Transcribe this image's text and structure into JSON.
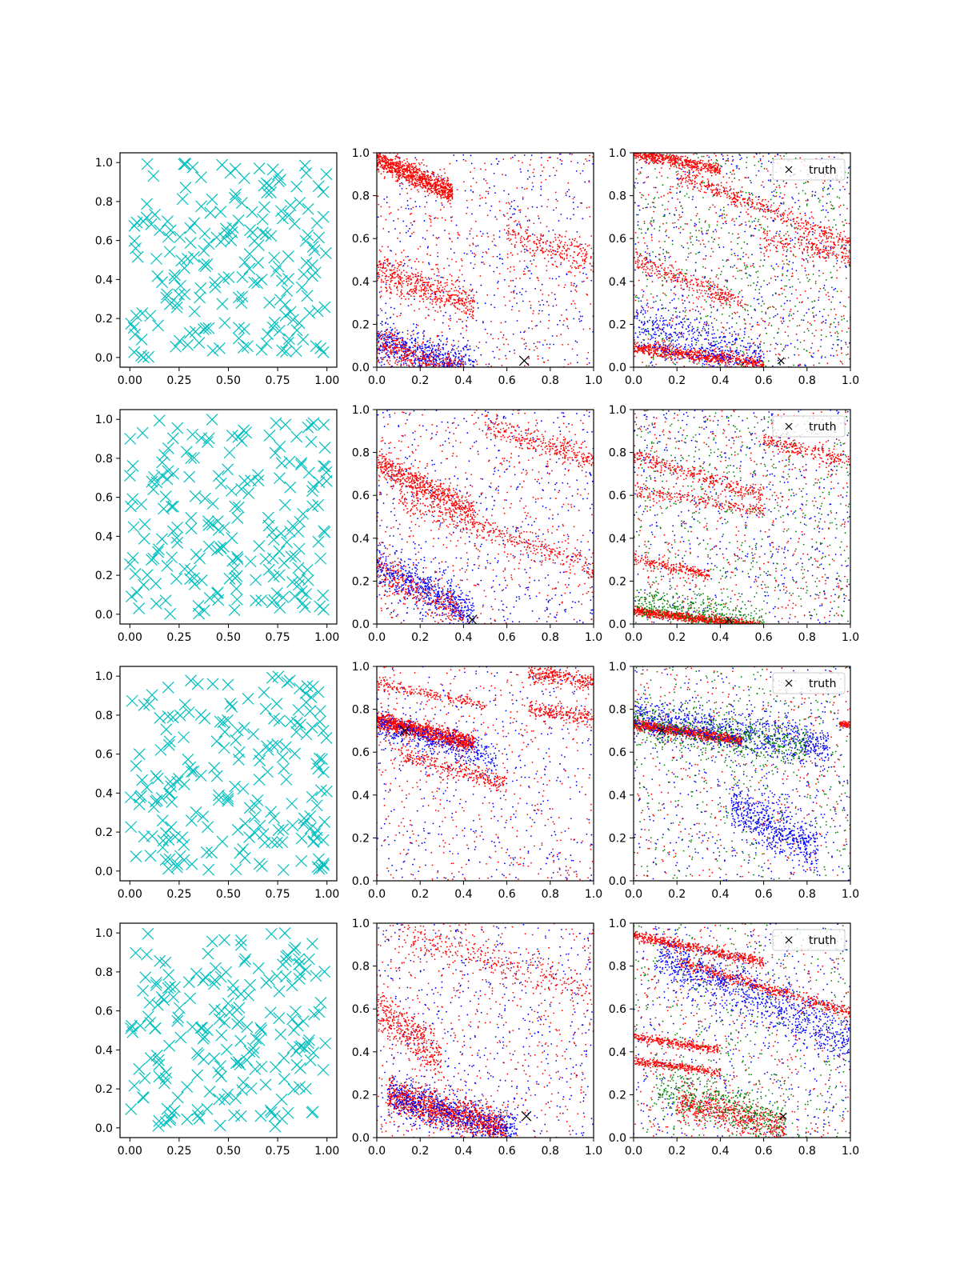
{
  "figure": {
    "rows": 4,
    "cols": 3,
    "legend_label": "truth",
    "colors": {
      "cyan": "#00bfbf",
      "red": "#ff0000",
      "blue": "#0000ff",
      "green": "#008000",
      "black": "#000000"
    }
  },
  "chart_data": [
    {
      "type": "scatter",
      "panel": "row1-col1",
      "marker": "x",
      "color": "#00bfbf",
      "point_count": 200,
      "xlim": [
        -0.05,
        1.05
      ],
      "ylim": [
        -0.05,
        1.05
      ],
      "x_ticks": [
        "0.00",
        "0.25",
        "0.50",
        "0.75",
        "1.00"
      ],
      "y_ticks": [
        "0.0",
        "0.2",
        "0.4",
        "0.6",
        "0.8",
        "1.0"
      ],
      "seed": 11
    },
    {
      "type": "scatter",
      "panel": "row1-col2",
      "marker": "dot",
      "series_colors": [
        "#0000ff",
        "#ff0000"
      ],
      "xlim": [
        0,
        1
      ],
      "ylim": [
        0,
        1
      ],
      "x_ticks": [
        "0.0",
        "0.2",
        "0.4",
        "0.6",
        "0.8",
        "1.0"
      ],
      "y_ticks": [
        "0.0",
        "0.2",
        "0.4",
        "0.6",
        "0.8",
        "1.0"
      ],
      "truth": {
        "x": 0.68,
        "y": 0.03
      },
      "legend": false,
      "bands": [
        {
          "x0": 0.0,
          "y0": 0.97,
          "slope": -0.45,
          "len": 0.35,
          "n": 900,
          "spread": 0.025,
          "c": "#ff0000"
        },
        {
          "x0": 0.0,
          "y0": 0.45,
          "slope": -0.35,
          "len": 0.45,
          "n": 500,
          "spread": 0.04,
          "c": "#ff0000"
        },
        {
          "x0": 0.0,
          "y0": 0.12,
          "slope": -0.3,
          "len": 0.45,
          "n": 700,
          "spread": 0.05,
          "c": "#0000ff"
        },
        {
          "x0": 0.0,
          "y0": 0.1,
          "slope": -0.3,
          "len": 0.4,
          "n": 400,
          "spread": 0.04,
          "c": "#ff0000"
        },
        {
          "x0": 0.6,
          "y0": 0.62,
          "slope": -0.3,
          "len": 0.4,
          "n": 250,
          "spread": 0.04,
          "c": "#ff0000"
        }
      ],
      "scatter_n": 900,
      "seed": 21
    },
    {
      "type": "scatter",
      "panel": "row1-col3",
      "marker": "dot",
      "series_colors": [
        "#008000",
        "#0000ff",
        "#ff0000"
      ],
      "xlim": [
        0,
        1
      ],
      "ylim": [
        0,
        1
      ],
      "x_ticks": [
        "0.0",
        "0.2",
        "0.4",
        "0.6",
        "0.8",
        "1.0"
      ],
      "y_ticks": [
        "0.0",
        "0.2",
        "0.4",
        "0.6",
        "0.8",
        "1.0"
      ],
      "truth": {
        "x": 0.68,
        "y": 0.03
      },
      "legend": true,
      "bands": [
        {
          "x0": 0.0,
          "y0": 1.0,
          "slope": -0.2,
          "len": 0.4,
          "n": 500,
          "spread": 0.015,
          "c": "#ff0000"
        },
        {
          "x0": 0.2,
          "y0": 0.9,
          "slope": -0.4,
          "len": 0.8,
          "n": 400,
          "spread": 0.02,
          "c": "#ff0000"
        },
        {
          "x0": 0.0,
          "y0": 0.5,
          "slope": -0.4,
          "len": 0.5,
          "n": 300,
          "spread": 0.025,
          "c": "#ff0000"
        },
        {
          "x0": 0.0,
          "y0": 0.09,
          "slope": -0.12,
          "len": 0.6,
          "n": 700,
          "spread": 0.015,
          "c": "#ff0000"
        },
        {
          "x0": 0.0,
          "y0": 0.2,
          "slope": -0.3,
          "len": 0.6,
          "n": 500,
          "spread": 0.06,
          "c": "#0000ff"
        },
        {
          "x0": 0.6,
          "y0": 0.6,
          "slope": -0.2,
          "len": 0.4,
          "n": 200,
          "spread": 0.03,
          "c": "#ff0000"
        }
      ],
      "scatter_n": 1600,
      "seed": 31
    },
    {
      "type": "scatter",
      "panel": "row2-col1",
      "marker": "x",
      "color": "#00bfbf",
      "point_count": 200,
      "xlim": [
        -0.05,
        1.05
      ],
      "ylim": [
        -0.05,
        1.05
      ],
      "x_ticks": [
        "0.00",
        "0.25",
        "0.50",
        "0.75",
        "1.00"
      ],
      "y_ticks": [
        "0.0",
        "0.2",
        "0.4",
        "0.6",
        "0.8",
        "1.0"
      ],
      "seed": 12
    },
    {
      "type": "scatter",
      "panel": "row2-col2",
      "marker": "dot",
      "series_colors": [
        "#0000ff",
        "#ff0000"
      ],
      "xlim": [
        0,
        1
      ],
      "ylim": [
        0,
        1
      ],
      "x_ticks": [
        "0.0",
        "0.2",
        "0.4",
        "0.6",
        "0.8",
        "1.0"
      ],
      "y_ticks": [
        "0.0",
        "0.2",
        "0.4",
        "0.6",
        "0.8",
        "1.0"
      ],
      "truth": {
        "x": 0.44,
        "y": 0.02
      },
      "legend": false,
      "bands": [
        {
          "x0": 0.0,
          "y0": 0.75,
          "slope": -0.5,
          "len": 0.45,
          "n": 600,
          "spread": 0.03,
          "c": "#ff0000"
        },
        {
          "x0": 0.0,
          "y0": 0.27,
          "slope": -0.5,
          "len": 0.45,
          "n": 600,
          "spread": 0.05,
          "c": "#0000ff"
        },
        {
          "x0": 0.1,
          "y0": 0.58,
          "slope": -0.35,
          "len": 0.9,
          "n": 400,
          "spread": 0.03,
          "c": "#ff0000"
        },
        {
          "x0": 0.5,
          "y0": 0.92,
          "slope": -0.3,
          "len": 0.5,
          "n": 300,
          "spread": 0.03,
          "c": "#ff0000"
        },
        {
          "x0": 0.0,
          "y0": 0.25,
          "slope": -0.5,
          "len": 0.4,
          "n": 300,
          "spread": 0.04,
          "c": "#ff0000"
        }
      ],
      "scatter_n": 1000,
      "seed": 22
    },
    {
      "type": "scatter",
      "panel": "row2-col3",
      "marker": "dot",
      "series_colors": [
        "#008000",
        "#0000ff",
        "#ff0000"
      ],
      "xlim": [
        0,
        1
      ],
      "ylim": [
        0,
        1
      ],
      "x_ticks": [
        "0.0",
        "0.2",
        "0.4",
        "0.6",
        "0.8",
        "1.0"
      ],
      "y_ticks": [
        "0.0",
        "0.2",
        "0.4",
        "0.6",
        "0.8",
        "1.0"
      ],
      "truth": {
        "x": 0.44,
        "y": 0.02
      },
      "legend": true,
      "bands": [
        {
          "x0": 0.0,
          "y0": 0.06,
          "slope": -0.12,
          "len": 0.6,
          "n": 900,
          "spread": 0.01,
          "c": "#ff0000"
        },
        {
          "x0": 0.0,
          "y0": 0.78,
          "slope": -0.3,
          "len": 0.6,
          "n": 300,
          "spread": 0.02,
          "c": "#ff0000"
        },
        {
          "x0": 0.0,
          "y0": 0.3,
          "slope": -0.2,
          "len": 0.35,
          "n": 200,
          "spread": 0.015,
          "c": "#ff0000"
        },
        {
          "x0": 0.0,
          "y0": 0.62,
          "slope": -0.15,
          "len": 0.6,
          "n": 200,
          "spread": 0.015,
          "c": "#ff0000"
        },
        {
          "x0": 0.6,
          "y0": 0.85,
          "slope": -0.2,
          "len": 0.4,
          "n": 200,
          "spread": 0.02,
          "c": "#ff0000"
        },
        {
          "x0": 0.0,
          "y0": 0.1,
          "slope": -0.15,
          "len": 0.6,
          "n": 400,
          "spread": 0.04,
          "c": "#008000"
        }
      ],
      "scatter_n": 1600,
      "seed": 32
    },
    {
      "type": "scatter",
      "panel": "row3-col1",
      "marker": "x",
      "color": "#00bfbf",
      "point_count": 200,
      "xlim": [
        -0.05,
        1.05
      ],
      "ylim": [
        -0.05,
        1.05
      ],
      "x_ticks": [
        "0.00",
        "0.25",
        "0.50",
        "0.75",
        "1.00"
      ],
      "y_ticks": [
        "0.0",
        "0.2",
        "0.4",
        "0.6",
        "0.8",
        "1.0"
      ],
      "seed": 13
    },
    {
      "type": "scatter",
      "panel": "row3-col2",
      "marker": "dot",
      "series_colors": [
        "#0000ff",
        "#ff0000"
      ],
      "xlim": [
        0,
        1
      ],
      "ylim": [
        0,
        1
      ],
      "x_ticks": [
        "0.0",
        "0.2",
        "0.4",
        "0.6",
        "0.8",
        "1.0"
      ],
      "y_ticks": [
        "0.0",
        "0.2",
        "0.4",
        "0.6",
        "0.8",
        "1.0"
      ],
      "truth": {
        "x": 0.13,
        "y": 0.7
      },
      "legend": false,
      "bands": [
        {
          "x0": 0.0,
          "y0": 0.75,
          "slope": -0.25,
          "len": 0.45,
          "n": 1200,
          "spread": 0.02,
          "c": "#ff0000"
        },
        {
          "x0": 0.0,
          "y0": 0.73,
          "slope": -0.3,
          "len": 0.55,
          "n": 400,
          "spread": 0.04,
          "c": "#0000ff"
        },
        {
          "x0": 0.1,
          "y0": 0.6,
          "slope": -0.3,
          "len": 0.5,
          "n": 300,
          "spread": 0.025,
          "c": "#ff0000"
        },
        {
          "x0": 0.0,
          "y0": 0.92,
          "slope": -0.2,
          "len": 0.5,
          "n": 200,
          "spread": 0.015,
          "c": "#ff0000"
        },
        {
          "x0": 0.7,
          "y0": 0.97,
          "slope": -0.15,
          "len": 0.3,
          "n": 250,
          "spread": 0.02,
          "c": "#ff0000"
        },
        {
          "x0": 0.7,
          "y0": 0.8,
          "slope": -0.15,
          "len": 0.3,
          "n": 200,
          "spread": 0.02,
          "c": "#ff0000"
        }
      ],
      "scatter_n": 900,
      "seed": 23
    },
    {
      "type": "scatter",
      "panel": "row3-col3",
      "marker": "dot",
      "series_colors": [
        "#008000",
        "#0000ff",
        "#ff0000"
      ],
      "xlim": [
        0,
        1
      ],
      "ylim": [
        0,
        1
      ],
      "x_ticks": [
        "0.0",
        "0.2",
        "0.4",
        "0.6",
        "0.8",
        "1.0"
      ],
      "y_ticks": [
        "0.0",
        "0.2",
        "0.4",
        "0.6",
        "0.8",
        "1.0"
      ],
      "truth": {
        "x": 0.13,
        "y": 0.7
      },
      "legend": true,
      "bands": [
        {
          "x0": 0.0,
          "y0": 0.73,
          "slope": -0.15,
          "len": 0.5,
          "n": 1000,
          "spread": 0.012,
          "c": "#ff0000"
        },
        {
          "x0": 0.0,
          "y0": 0.76,
          "slope": -0.15,
          "len": 0.9,
          "n": 900,
          "spread": 0.05,
          "c": "#0000ff"
        },
        {
          "x0": 0.0,
          "y0": 0.74,
          "slope": -0.15,
          "len": 0.8,
          "n": 500,
          "spread": 0.05,
          "c": "#008000"
        },
        {
          "x0": 0.45,
          "y0": 0.35,
          "slope": -0.5,
          "len": 0.4,
          "n": 600,
          "spread": 0.06,
          "c": "#0000ff"
        },
        {
          "x0": 0.95,
          "y0": 0.73,
          "slope": 0.0,
          "len": 0.05,
          "n": 60,
          "spread": 0.008,
          "c": "#ff0000"
        }
      ],
      "scatter_n": 1200,
      "seed": 33
    },
    {
      "type": "scatter",
      "panel": "row4-col1",
      "marker": "x",
      "color": "#00bfbf",
      "point_count": 200,
      "xlim": [
        -0.05,
        1.05
      ],
      "ylim": [
        -0.05,
        1.05
      ],
      "x_ticks": [
        "0.00",
        "0.25",
        "0.50",
        "0.75",
        "1.00"
      ],
      "y_ticks": [
        "0.0",
        "0.2",
        "0.4",
        "0.6",
        "0.8",
        "1.0"
      ],
      "seed": 14
    },
    {
      "type": "scatter",
      "panel": "row4-col2",
      "marker": "dot",
      "series_colors": [
        "#0000ff",
        "#ff0000"
      ],
      "xlim": [
        0,
        1
      ],
      "ylim": [
        0,
        1
      ],
      "x_ticks": [
        "0.0",
        "0.2",
        "0.4",
        "0.6",
        "0.8",
        "1.0"
      ],
      "y_ticks": [
        "0.0",
        "0.2",
        "0.4",
        "0.6",
        "0.8",
        "1.0"
      ],
      "truth": {
        "x": 0.69,
        "y": 0.1
      },
      "legend": false,
      "bands": [
        {
          "x0": 0.05,
          "y0": 0.2,
          "slope": -0.3,
          "len": 0.55,
          "n": 1300,
          "spread": 0.04,
          "c": "#ff0000"
        },
        {
          "x0": 0.05,
          "y0": 0.2,
          "slope": -0.3,
          "len": 0.6,
          "n": 700,
          "spread": 0.05,
          "c": "#0000ff"
        },
        {
          "x0": 0.0,
          "y0": 0.6,
          "slope": -0.8,
          "len": 0.3,
          "n": 400,
          "spread": 0.05,
          "c": "#ff0000"
        },
        {
          "x0": 0.1,
          "y0": 0.95,
          "slope": -0.3,
          "len": 0.9,
          "n": 300,
          "spread": 0.04,
          "c": "#ff0000"
        }
      ],
      "scatter_n": 1000,
      "seed": 24
    },
    {
      "type": "scatter",
      "panel": "row4-col3",
      "marker": "dot",
      "series_colors": [
        "#008000",
        "#0000ff",
        "#ff0000"
      ],
      "xlim": [
        0,
        1
      ],
      "ylim": [
        0,
        1
      ],
      "x_ticks": [
        "0.0",
        "0.2",
        "0.4",
        "0.6",
        "0.8",
        "1.0"
      ],
      "y_ticks": [
        "0.0",
        "0.2",
        "0.4",
        "0.6",
        "0.8",
        "1.0"
      ],
      "truth": {
        "x": 0.69,
        "y": 0.1
      },
      "legend": true,
      "bands": [
        {
          "x0": 0.0,
          "y0": 0.94,
          "slope": -0.2,
          "len": 0.6,
          "n": 500,
          "spread": 0.012,
          "c": "#ff0000"
        },
        {
          "x0": 0.2,
          "y0": 0.82,
          "slope": -0.3,
          "len": 0.8,
          "n": 500,
          "spread": 0.015,
          "c": "#ff0000"
        },
        {
          "x0": 0.1,
          "y0": 0.85,
          "slope": -0.45,
          "len": 0.9,
          "n": 900,
          "spread": 0.06,
          "c": "#0000ff"
        },
        {
          "x0": 0.0,
          "y0": 0.47,
          "slope": -0.15,
          "len": 0.4,
          "n": 300,
          "spread": 0.01,
          "c": "#ff0000"
        },
        {
          "x0": 0.0,
          "y0": 0.36,
          "slope": -0.15,
          "len": 0.4,
          "n": 300,
          "spread": 0.01,
          "c": "#ff0000"
        },
        {
          "x0": 0.2,
          "y0": 0.17,
          "slope": -0.25,
          "len": 0.5,
          "n": 600,
          "spread": 0.04,
          "c": "#ff0000"
        },
        {
          "x0": 0.1,
          "y0": 0.25,
          "slope": -0.3,
          "len": 0.6,
          "n": 400,
          "spread": 0.06,
          "c": "#008000"
        }
      ],
      "scatter_n": 1300,
      "seed": 34
    }
  ]
}
